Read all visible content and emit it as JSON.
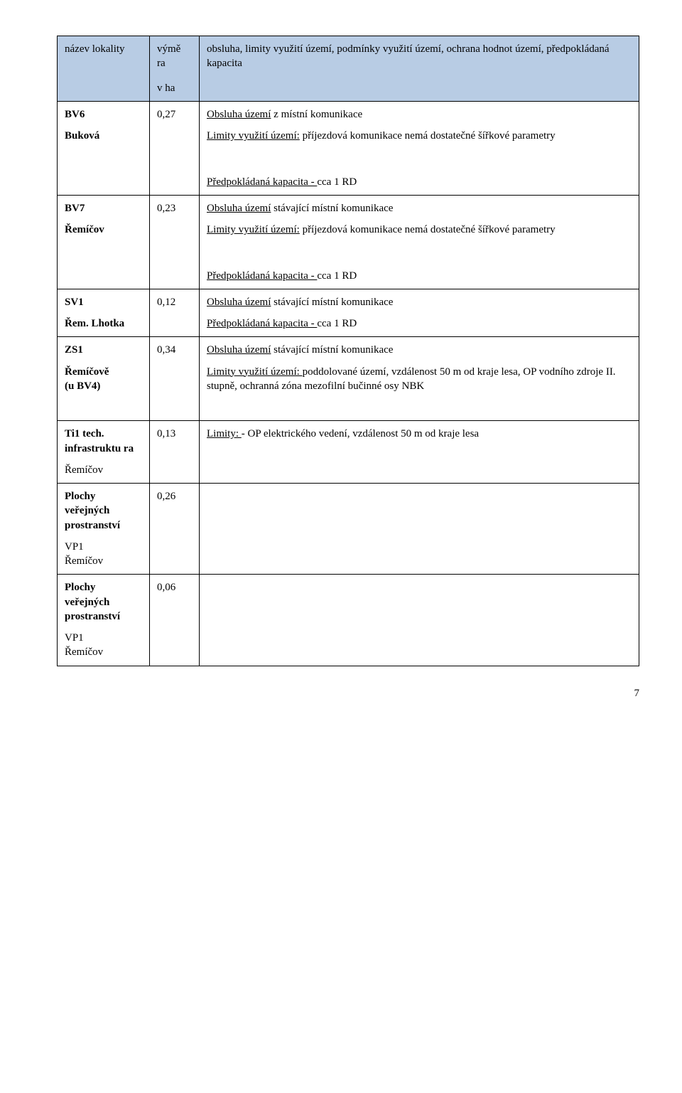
{
  "header": {
    "col1": "název lokality",
    "col2_line1": "výmě",
    "col2_line2": "ra",
    "col2_line3": "v ha",
    "col3": "obsluha, limity využití území, podmínky využití území, ochrana hodnot území, předpokládaná kapacita"
  },
  "rows": [
    {
      "code": "BV6",
      "place": "Buková",
      "area": "0,27",
      "obsluha_label": "Obsluha území",
      "obsluha_text": "   z místní komunikace",
      "limity_label": "Limity využití území:",
      "limity_text": " příjezdová komunikace nemá dostatečné šířkové parametry",
      "kapacita_label": "Předpokládaná kapacita - ",
      "kapacita_text": " cca 1 RD"
    },
    {
      "code": "BV7",
      "place": "Řemíčov",
      "area": "0,23",
      "obsluha_label": "Obsluha území",
      "obsluha_text": "   stávající místní komunikace",
      "limity_label": "Limity využití území:",
      "limity_text": " příjezdová komunikace nemá dostatečné šířkové parametry",
      "kapacita_label": "Předpokládaná kapacita - ",
      "kapacita_text": " cca 1 RD"
    },
    {
      "code": "SV1",
      "place": "Řem. Lhotka",
      "area": "0,12",
      "obsluha_label": "Obsluha území",
      "obsluha_text": "   stávající místní komunikace",
      "kapacita_label": "Předpokládaná kapacita - ",
      "kapacita_text": " cca 1 RD"
    },
    {
      "code": "ZS1",
      "place_line1": "Řemíčově",
      "place_line2": " (u BV4)",
      "area": "0,34",
      "obsluha_label": "Obsluha území",
      "obsluha_text": "   stávající místní komunikace",
      "limity_label": "Limity využití území: ",
      "limity_text": " poddolované území, vzdálenost 50 m od kraje lesa, OP vodního zdroje II. stupně, ochranná zóna mezofilní bučinné osy NBK"
    }
  ],
  "rows2": [
    {
      "code": "Ti1 tech. infrastruktu ra",
      "place": "Řemíčov",
      "area": "0,13",
      "limity_label": "Limity: ",
      "limity_text": " - OP elektrického vedení, vzdálenost 50 m od kraje lesa"
    },
    {
      "code": "Plochy veřejných prostranství",
      "place_line1": "VP1",
      "place_line2": "Řemíčov",
      "area": "0,26"
    },
    {
      "code": "Plochy veřejných prostranství",
      "place_line1": "VP1",
      "place_line2": "Řemíčov",
      "area": "0,06"
    }
  ],
  "page_number": "7",
  "colors": {
    "header_bg": "#b8cce4",
    "border": "#000000",
    "text": "#000000",
    "page_bg": "#ffffff"
  }
}
